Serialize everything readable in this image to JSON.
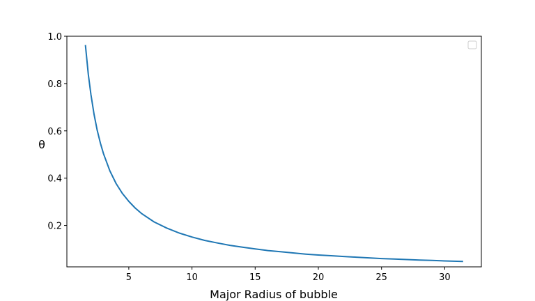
{
  "chart_data": {
    "type": "line",
    "title": "",
    "xlabel": "Major Radius of bubble",
    "ylabel": "θ",
    "xlim": [
      0.1,
      32.9
    ],
    "ylim": [
      0.025,
      1.0
    ],
    "xticks": [
      5,
      10,
      15,
      20,
      25,
      30
    ],
    "xtick_labels": [
      "5",
      "10",
      "15",
      "20",
      "25",
      "30"
    ],
    "yticks": [
      0.2,
      0.4,
      0.6,
      0.8,
      1.0
    ],
    "ytick_labels": [
      "0.2",
      "0.4",
      "0.6",
      "0.8",
      "1.0"
    ],
    "grid": false,
    "legend": {
      "placement": "top-right",
      "entries": []
    },
    "series": [
      {
        "color": "#1f77b4",
        "x": [
          1.57,
          1.8,
          2.0,
          2.25,
          2.5,
          2.75,
          3.0,
          3.5,
          4.0,
          4.5,
          5.0,
          5.5,
          6.0,
          7.0,
          8.0,
          9.0,
          10.0,
          11.0,
          12.0,
          13.0,
          14.0,
          15.0,
          16.0,
          17.0,
          18.0,
          19.0,
          20.0,
          21.0,
          22.0,
          23.0,
          24.0,
          25.0,
          26.0,
          27.0,
          28.0,
          29.0,
          30.0,
          31.4
        ],
        "y": [
          0.96,
          0.838,
          0.754,
          0.67,
          0.603,
          0.548,
          0.503,
          0.431,
          0.377,
          0.335,
          0.302,
          0.274,
          0.251,
          0.215,
          0.189,
          0.168,
          0.151,
          0.137,
          0.126,
          0.116,
          0.108,
          0.101,
          0.094,
          0.089,
          0.084,
          0.079,
          0.075,
          0.072,
          0.069,
          0.066,
          0.063,
          0.06,
          0.058,
          0.056,
          0.054,
          0.052,
          0.05,
          0.048
        ]
      }
    ]
  }
}
